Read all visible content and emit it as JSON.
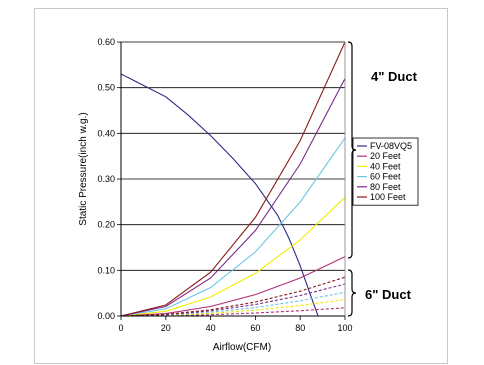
{
  "chart_data": {
    "type": "line",
    "xlabel": "Airflow(CFM)",
    "ylabel": "Static Pressure(inch w.g.)",
    "xlim": [
      0,
      100
    ],
    "ylim": [
      0,
      0.6
    ],
    "x_ticks": [
      "0",
      "20",
      "40",
      "60",
      "80",
      "100"
    ],
    "y_ticks": [
      "0.00",
      "0.10",
      "0.20",
      "0.30",
      "0.40",
      "0.50",
      "0.60"
    ],
    "grid": "horizontal",
    "legend_position": "right",
    "annotations": [
      "4\" Duct",
      "6\" Duct"
    ],
    "series": [
      {
        "name": "FV-08VQ5",
        "color": "#2b2b8c",
        "dash": "solid",
        "x": [
          0,
          10,
          20,
          30,
          40,
          50,
          60,
          70,
          75,
          80,
          85,
          88
        ],
        "y": [
          0.53,
          0.505,
          0.48,
          0.44,
          0.395,
          0.345,
          0.29,
          0.22,
          0.17,
          0.11,
          0.04,
          0.0
        ]
      },
      {
        "name": "20 Feet",
        "color": "#b0307a",
        "dash": "solid",
        "x": [
          0,
          20,
          40,
          60,
          80,
          100
        ],
        "y": [
          0,
          0.0052,
          0.0208,
          0.0468,
          0.0832,
          0.13
        ]
      },
      {
        "name": "40 Feet",
        "color": "#f2ea00",
        "dash": "solid",
        "x": [
          0,
          20,
          40,
          60,
          80,
          100
        ],
        "y": [
          0,
          0.0104,
          0.0416,
          0.0936,
          0.1664,
          0.26
        ]
      },
      {
        "name": "60 Feet",
        "color": "#6cc6e6",
        "dash": "solid",
        "x": [
          0,
          20,
          40,
          60,
          80,
          100
        ],
        "y": [
          0,
          0.0156,
          0.0624,
          0.1404,
          0.2496,
          0.39
        ]
      },
      {
        "name": "80 Feet",
        "color": "#7a2a8a",
        "dash": "solid",
        "x": [
          0,
          20,
          40,
          60,
          80,
          100
        ],
        "y": [
          0,
          0.0208,
          0.0832,
          0.1872,
          0.3328,
          0.52
        ]
      },
      {
        "name": "100 Feet",
        "color": "#8b1a1a",
        "dash": "solid",
        "x": [
          0,
          20,
          40,
          60,
          80,
          100
        ],
        "y": [
          0,
          0.024,
          0.096,
          0.216,
          0.384,
          0.6
        ]
      },
      {
        "color": "#b0307a",
        "dash": "dashed",
        "x": [
          0,
          20,
          40,
          60,
          80,
          100
        ],
        "y": [
          0,
          0.0007,
          0.0029,
          0.0065,
          0.0115,
          0.018
        ]
      },
      {
        "color": "#f2ea00",
        "dash": "dashed",
        "x": [
          0,
          20,
          40,
          60,
          80,
          100
        ],
        "y": [
          0,
          0.0014,
          0.0058,
          0.013,
          0.023,
          0.036
        ]
      },
      {
        "color": "#6cc6e6",
        "dash": "dashed",
        "x": [
          0,
          20,
          40,
          60,
          80,
          100
        ],
        "y": [
          0,
          0.0021,
          0.0083,
          0.0187,
          0.0333,
          0.052
        ]
      },
      {
        "color": "#7a2a8a",
        "dash": "dashed",
        "x": [
          0,
          20,
          40,
          60,
          80,
          100
        ],
        "y": [
          0,
          0.0028,
          0.0112,
          0.0252,
          0.0448,
          0.07
        ]
      },
      {
        "color": "#8b1a1a",
        "dash": "dashed",
        "x": [
          0,
          20,
          40,
          60,
          80,
          100
        ],
        "y": [
          0,
          0.0034,
          0.0136,
          0.0306,
          0.0544,
          0.085
        ]
      }
    ]
  }
}
